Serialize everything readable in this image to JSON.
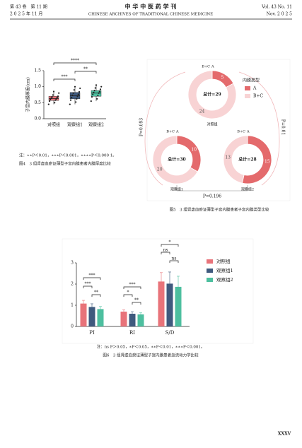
{
  "header": {
    "volume": "第 43 卷　第 11 期",
    "date": "2 0 2 5 年 11 月",
    "journal_cn": "中 华 中 医 药 学 刊",
    "journal_en": "CHINESE ARCHIVES OF TRADITIONAL CHINESE MEDICINE",
    "volume_en": "Vol. 43 No. 11",
    "date_en": "Nov. 2 0 2 5"
  },
  "figure4": {
    "type": "box",
    "y_label": "子宫内膜厚度(cm)",
    "categories": [
      "对照组",
      "观察组1",
      "观察组2"
    ],
    "colors": [
      "#e8737a",
      "#3f5a7e",
      "#4dbf9f"
    ],
    "boxes": [
      {
        "min": 0.45,
        "q1": 0.57,
        "median": 0.63,
        "q3": 0.7,
        "max": 0.85
      },
      {
        "min": 0.45,
        "q1": 0.62,
        "median": 0.72,
        "q3": 0.82,
        "max": 1.0
      },
      {
        "min": 0.55,
        "q1": 0.7,
        "median": 0.8,
        "q3": 0.88,
        "max": 1.05
      }
    ],
    "points": [
      [
        0.45,
        0.5,
        0.55,
        0.58,
        0.6,
        0.62,
        0.64,
        0.66,
        0.68,
        0.7,
        0.74,
        0.8,
        0.85
      ],
      [
        0.45,
        0.52,
        0.58,
        0.62,
        0.66,
        0.7,
        0.73,
        0.76,
        0.8,
        0.84,
        0.9,
        0.95,
        1.0
      ],
      [
        0.55,
        0.62,
        0.68,
        0.72,
        0.76,
        0.8,
        0.82,
        0.85,
        0.88,
        0.92,
        0.96,
        1.0,
        1.05
      ]
    ],
    "ylim": [
      0,
      1.5
    ],
    "yticks": [
      {
        "value": 0,
        "label": "0.0"
      },
      0.5,
      {
        "value": 1,
        "label": "1.0"
      },
      1.5
    ],
    "significance": [
      "****",
      "**",
      "***"
    ],
    "note": "注：∗∗P＜0.01，∗∗∗P＜0.001，∗∗∗∗P＜0.000 1。",
    "caption": "图4　3 组肾虚血瘀证薄型子宫内膜患者内膜厚度比较"
  },
  "figure5": {
    "type": "donut",
    "legend_title": "内膜类型",
    "series": [
      {
        "name": "A",
        "color": "#e46a6c"
      },
      {
        "name": "B+C",
        "color": "#f8d3d4"
      }
    ],
    "donuts": [
      {
        "name": "对照组",
        "total_label": "总计=29",
        "values": [
          5,
          24
        ]
      },
      {
        "name": "观察组1",
        "total_label": "总计=30",
        "values": [
          10,
          20
        ]
      },
      {
        "name": "观察组2",
        "total_label": "总计=28",
        "values": [
          15,
          13
        ]
      }
    ],
    "p_values": [
      "P=0.093",
      "P=0.01",
      "P=0.196"
    ],
    "caption": "图5　3 组肾虚血瘀证薄型子宫内膜患者子宫内膜类型比较"
  },
  "figure6": {
    "type": "bar",
    "categories": [
      "PI",
      "RI",
      "S/D"
    ],
    "series": [
      {
        "name": "对照组",
        "color": "#e8737a",
        "values": [
          1.08,
          0.7,
          2.12
        ],
        "errors": [
          0.15,
          0.08,
          0.42
        ]
      },
      {
        "name": "观察组1",
        "color": "#3f5a7e",
        "values": [
          0.92,
          0.6,
          2.02
        ],
        "errors": [
          0.15,
          0.1,
          0.55
        ]
      },
      {
        "name": "观察组2",
        "color": "#4dbf9f",
        "values": [
          0.82,
          0.57,
          1.87
        ],
        "errors": [
          0.12,
          0.08,
          0.5
        ]
      }
    ],
    "ylim": [
      0,
      3
    ],
    "yticks": [
      0,
      1,
      2,
      3
    ],
    "significance": [
      [
        "***",
        "***",
        "**"
      ],
      [
        "***",
        "*",
        "**"
      ],
      [
        "*",
        "ns",
        "ns"
      ]
    ],
    "note": "注：ns P＞0.05，∗P＜0.05，∗∗P＜0.01，∗∗∗P＜0.001。",
    "caption": "图6　3 组肾虚血瘀证薄型子宫内膜患者血流动力学比较"
  },
  "page_number": "XXXV"
}
